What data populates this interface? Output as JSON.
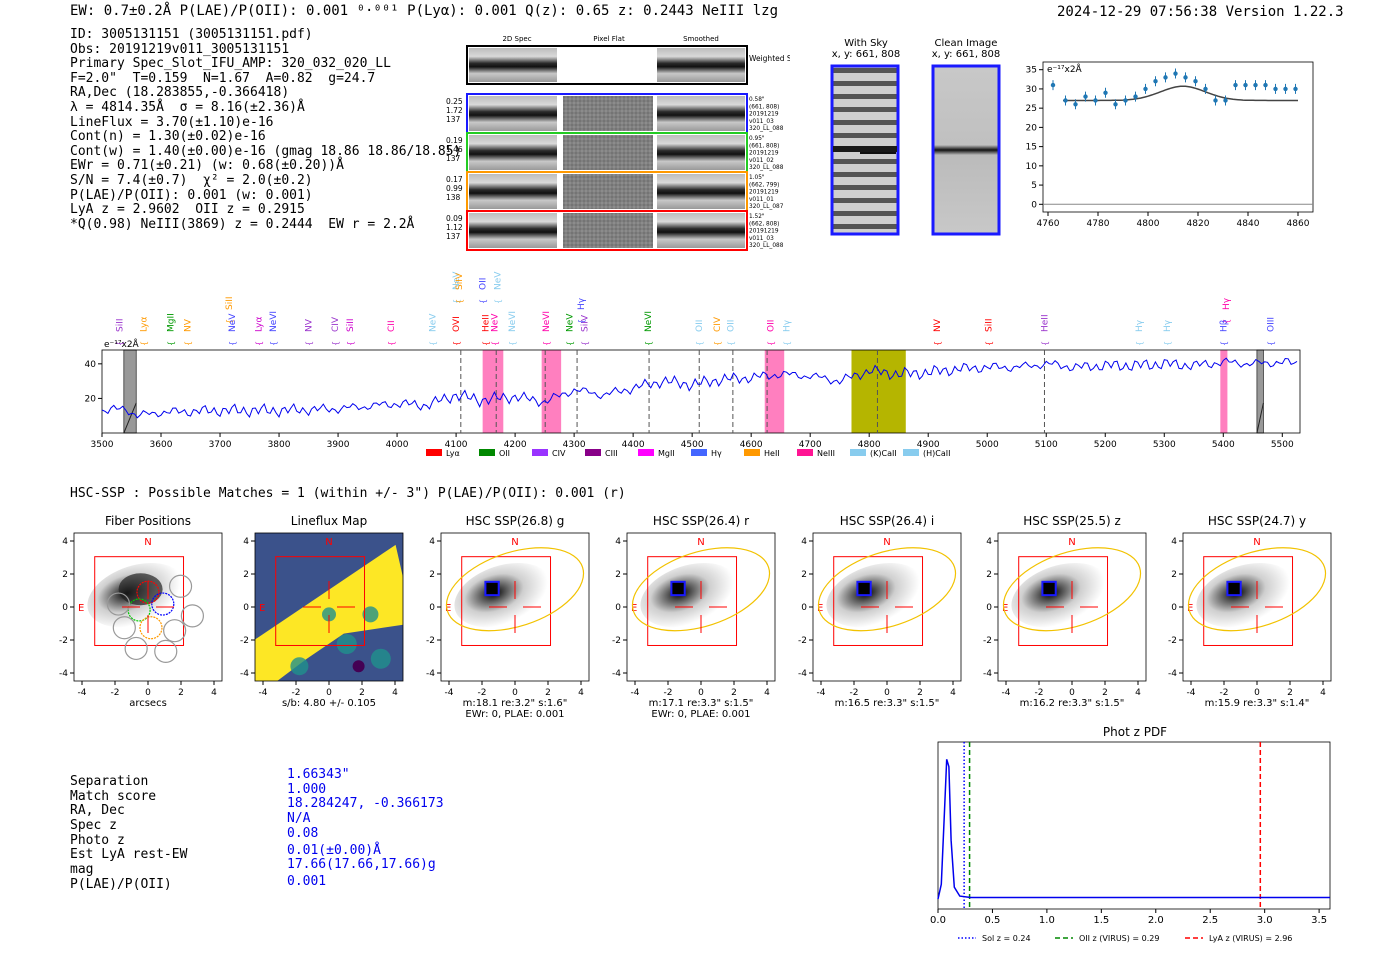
{
  "header": {
    "left": "EW: 0.7±0.2Å  P(LAE)/P(OII): 0.001 ⁰·⁰⁰¹  P(Lyα): 0.001  Q(z): 0.65  z: 0.2443  NeIII  lzg",
    "right": "2024-12-29 07:56:38  Version 1.22.3"
  },
  "info": [
    "ID: 3005131151 (3005131151.pdf)",
    "Obs: 20191219v011_3005131151",
    "Primary Spec_Slot_IFU_AMP: 320_032_020_LL",
    "F=2.0\"  T=0.159  N=1.67  A=0.82  g=24.7",
    "RA,Dec (18.283855,-0.366418)",
    "λ = 4814.35Å  σ = 8.16(±2.36)Å",
    "LineFlux = 3.70(±1.10)e-16",
    "Cont(n) = 1.30(±0.02)e-16",
    "Cont(w) = 1.40(±0.00)e-16 (gmag 18.86 18.86/18.85)",
    "EWr = 0.71(±0.21) (w: 0.68(±0.20))Å",
    "S/N = 7.4(±0.7)  χ² = 2.0(±0.2)",
    "P(LAE)/P(OII): 0.001 (w: 0.001)",
    "LyA z = 2.9602  OII z = 0.2915",
    "*Q(0.98) NeIII(3869) z = 0.2444  EW r = 2.2Å"
  ],
  "cutouts": {
    "col_titles": [
      "2D Spec",
      "Pixel Flat",
      "Smoothed"
    ],
    "weighted_label": "Weighted Sum",
    "rows": [
      {
        "left": [
          "0.25",
          "1.72",
          "137"
        ],
        "right": [
          "0.58\"",
          "(661, 808)",
          "20191219",
          "v011_03",
          "320_LL_088"
        ],
        "color": "#1a1aff"
      },
      {
        "left": [
          "0.19",
          "1.46",
          "137"
        ],
        "right": [
          "0.95\"",
          "(661, 808)",
          "20191219",
          "v011_02",
          "320_LL_088"
        ],
        "color": "#22cc22"
      },
      {
        "left": [
          "0.17",
          "0.99",
          "138"
        ],
        "right": [
          "1.05\"",
          "(662, 799)",
          "20191219",
          "v011_01",
          "320_LL_087"
        ],
        "color": "#ff9900"
      },
      {
        "left": [
          "0.09",
          "1.12",
          "137"
        ],
        "right": [
          "1.52\"",
          "(662, 808)",
          "20191219",
          "v011_03",
          "320_LL_088"
        ],
        "color": "#ff0000"
      }
    ]
  },
  "sky": {
    "title1": "With Sky",
    "title2": "Clean Image",
    "coord": "x, y: 661, 808"
  },
  "chart_data": [
    {
      "type": "line",
      "title": "zoom spectrum",
      "ylabel": "e⁻¹⁷x2Å",
      "x": [
        4762,
        4767,
        4771,
        4775,
        4779,
        4783,
        4787,
        4791,
        4795,
        4799,
        4803,
        4807,
        4811,
        4815,
        4819,
        4823,
        4827,
        4831,
        4835,
        4839,
        4843,
        4847,
        4851,
        4855,
        4859
      ],
      "y": [
        31,
        27,
        26,
        28,
        27,
        29,
        26,
        27,
        28,
        30,
        32,
        33,
        34,
        33,
        32,
        30,
        27,
        27,
        31,
        31,
        31,
        31,
        30,
        30,
        30
      ],
      "model": {
        "baseline": 27,
        "amp": 3.7,
        "center": 4814,
        "sigma": 9
      },
      "xlim": [
        4758,
        4866
      ],
      "ylim": [
        -2,
        37
      ],
      "xticks": [
        4760,
        4780,
        4800,
        4820,
        4840,
        4860
      ],
      "yticks": [
        0,
        5,
        10,
        15,
        20,
        25,
        30,
        35
      ]
    },
    {
      "type": "line",
      "title": "full spectrum",
      "ylabel": "e⁻¹⁷x2Å",
      "xlim": [
        3500,
        5530
      ],
      "ylim": [
        0,
        48
      ],
      "xticks": [
        3500,
        3600,
        3700,
        3800,
        3900,
        4000,
        4100,
        4200,
        4300,
        4400,
        4500,
        4600,
        4700,
        4800,
        4900,
        5000,
        5100,
        5200,
        5300,
        5400,
        5500
      ],
      "yticks": [
        20,
        40
      ],
      "knots": [
        [
          3500,
          13
        ],
        [
          3540,
          14
        ],
        [
          3560,
          10
        ],
        [
          3600,
          12
        ],
        [
          3700,
          13
        ],
        [
          3800,
          13
        ],
        [
          3900,
          14
        ],
        [
          4000,
          17
        ],
        [
          4050,
          16
        ],
        [
          4100,
          22
        ],
        [
          4140,
          19
        ],
        [
          4200,
          21
        ],
        [
          4250,
          18
        ],
        [
          4300,
          25
        ],
        [
          4350,
          22
        ],
        [
          4400,
          26
        ],
        [
          4450,
          30
        ],
        [
          4500,
          28
        ],
        [
          4550,
          31
        ],
        [
          4600,
          32
        ],
        [
          4650,
          34
        ],
        [
          4700,
          33
        ],
        [
          4750,
          30
        ],
        [
          4800,
          36
        ],
        [
          4850,
          34
        ],
        [
          4900,
          35
        ],
        [
          4950,
          37
        ],
        [
          5000,
          38
        ],
        [
          5050,
          38
        ],
        [
          5100,
          40
        ],
        [
          5150,
          38
        ],
        [
          5200,
          39
        ],
        [
          5250,
          39
        ],
        [
          5300,
          40
        ],
        [
          5350,
          39
        ],
        [
          5400,
          41
        ],
        [
          5450,
          40
        ],
        [
          5500,
          41
        ],
        [
          5530,
          40
        ]
      ],
      "dashed_lines": [
        4108,
        4168,
        4251,
        4305,
        4427,
        4512,
        4569,
        4627,
        4814,
        5097
      ],
      "pink_bands": [
        [
          4145,
          4180
        ],
        [
          4245,
          4278
        ],
        [
          4623,
          4656
        ],
        [
          5395,
          5407
        ]
      ],
      "olive_band": [
        4770,
        4862
      ],
      "gray_bands": [
        [
          3537,
          3558
        ],
        [
          5457,
          5468
        ]
      ],
      "lines": [
        {
          "name": "SiII",
          "x": 3530,
          "color": "#9933cc",
          "tier": 0
        },
        {
          "name": "Lyα",
          "x": 3570,
          "color": "#ff9900",
          "tier": 0
        },
        {
          "name": "MgII",
          "x": 3616,
          "color": "#009900",
          "tier": 0
        },
        {
          "name": "NV",
          "x": 3645,
          "color": "#ff9900",
          "tier": 0
        },
        {
          "name": "SiII",
          "x": 3715,
          "color": "#ff9900",
          "tier": 1
        },
        {
          "name": "NeV",
          "x": 3720,
          "color": "#4444ff",
          "tier": 0
        },
        {
          "name": "Lyα",
          "x": 3765,
          "color": "#cc00cc",
          "tier": 0
        },
        {
          "name": "NeVI",
          "x": 3790,
          "color": "#4444ff",
          "tier": 0
        },
        {
          "name": "NV",
          "x": 3850,
          "color": "#9933cc",
          "tier": 0
        },
        {
          "name": "CIV",
          "x": 3895,
          "color": "#9933cc",
          "tier": 0
        },
        {
          "name": "SiII",
          "x": 3920,
          "color": "#cc00cc",
          "tier": 0
        },
        {
          "name": "CII",
          "x": 3990,
          "color": "#ff00aa",
          "tier": 0
        },
        {
          "name": "NeV",
          "x": 4060,
          "color": "#88ccee",
          "tier": 0
        },
        {
          "name": "NeV",
          "x": 4100,
          "color": "#88ccee",
          "tier": 2
        },
        {
          "name": "SiIV",
          "x": 4105,
          "color": "#ff9900",
          "tier": 2
        },
        {
          "name": "OVI",
          "x": 4100,
          "color": "#ff0000",
          "tier": 0
        },
        {
          "name": "OII",
          "x": 4145,
          "color": "#4444ff",
          "tier": 2
        },
        {
          "name": "HeII",
          "x": 4150,
          "color": "#ff0000",
          "tier": 0
        },
        {
          "name": "NeV",
          "x": 4170,
          "color": "#88ccee",
          "tier": 2
        },
        {
          "name": "NeV",
          "x": 4165,
          "color": "#ff00aa",
          "tier": 0
        },
        {
          "name": "NeVI",
          "x": 4195,
          "color": "#88ccee",
          "tier": 0
        },
        {
          "name": "NeVI",
          "x": 4252,
          "color": "#ff00aa",
          "tier": 0
        },
        {
          "name": "NeV",
          "x": 4292,
          "color": "#009900",
          "tier": 0
        },
        {
          "name": "SiIV",
          "x": 4318,
          "color": "#9933cc",
          "tier": 0
        },
        {
          "name": "Hγ",
          "x": 4312,
          "color": "#4444ff",
          "tier": 1
        },
        {
          "name": "NeVI",
          "x": 4425,
          "color": "#009900",
          "tier": 0
        },
        {
          "name": "OII",
          "x": 4512,
          "color": "#88ccee",
          "tier": 0
        },
        {
          "name": "CIV",
          "x": 4542,
          "color": "#ff9900",
          "tier": 0
        },
        {
          "name": "OII",
          "x": 4565,
          "color": "#88ccee",
          "tier": 0
        },
        {
          "name": "OII",
          "x": 4633,
          "color": "#ff00aa",
          "tier": 0
        },
        {
          "name": "Hγ",
          "x": 4660,
          "color": "#88ccee",
          "tier": 0
        },
        {
          "name": "NV",
          "x": 4915,
          "color": "#ff0000",
          "tier": 0
        },
        {
          "name": "SiII",
          "x": 5002,
          "color": "#ff0000",
          "tier": 0
        },
        {
          "name": "HeII",
          "x": 5097,
          "color": "#9933cc",
          "tier": 0
        },
        {
          "name": "Hγ",
          "x": 5257,
          "color": "#88ccee",
          "tier": 0
        },
        {
          "name": "Hγ",
          "x": 5305,
          "color": "#88ccee",
          "tier": 0
        },
        {
          "name": "Hγ",
          "x": 5405,
          "color": "#ff00aa",
          "tier": 1
        },
        {
          "name": "Hβ",
          "x": 5400,
          "color": "#4444ff",
          "tier": 0
        },
        {
          "name": "OIII",
          "x": 5480,
          "color": "#4444ff",
          "tier": 0
        }
      ],
      "legend": [
        {
          "label": "Lyα",
          "color": "#ff0000"
        },
        {
          "label": "OII",
          "color": "#008800"
        },
        {
          "label": "CIV",
          "color": "#9933ff"
        },
        {
          "label": "CIII",
          "color": "#880088"
        },
        {
          "label": "MgII",
          "color": "#ff00ff"
        },
        {
          "label": "Hγ",
          "color": "#4466ff"
        },
        {
          "label": "HeII",
          "color": "#ff9900"
        },
        {
          "label": "NeIII",
          "color": "#ff1493"
        },
        {
          "label": "(K)CaII",
          "color": "#88ccee"
        },
        {
          "label": "(H)CaII",
          "color": "#88ccee"
        }
      ]
    },
    {
      "type": "line",
      "title": "Phot z PDF",
      "xlim": [
        0,
        3.6
      ],
      "ylim": [
        0,
        1
      ],
      "xticks": [
        0.0,
        0.5,
        1.0,
        1.5,
        2.0,
        2.5,
        3.0,
        3.5
      ],
      "pdf_x": [
        0,
        0.03,
        0.06,
        0.08,
        0.1,
        0.12,
        0.15,
        0.2,
        0.3,
        3.6
      ],
      "pdf_y": [
        0.0,
        0.1,
        0.6,
        0.95,
        0.9,
        0.4,
        0.08,
        0.02,
        0.01,
        0.01
      ],
      "vlines": [
        {
          "label": "Sol z = 0.24",
          "x": 0.24,
          "color": "#0000ff",
          "dash": "1.5,2"
        },
        {
          "label": "OII z (VIRUS) = 0.29",
          "x": 0.29,
          "color": "#008800",
          "dash": "5,3"
        },
        {
          "label": "LyA z (VIRUS) = 2.96",
          "x": 2.96,
          "color": "#ff0000",
          "dash": "5,3"
        }
      ]
    }
  ],
  "hsc_line": "HSC-SSP : Possible Matches = 1 (within +/- 3\")  P(LAE)/P(OII): 0.001 (r)",
  "panels": [
    {
      "title": "Fiber Positions",
      "caption1": "arcsecs",
      "caption2": ""
    },
    {
      "title": "Lineflux Map",
      "caption1": "s/b: 4.80 +/- 0.105",
      "caption2": ""
    },
    {
      "title": "HSC SSP(26.8) g",
      "caption1": "m:18.1  re:3.2\"  s:1.6\"",
      "caption2": "EWr: 0, PLAE: 0.001"
    },
    {
      "title": "HSC SSP(26.4) r",
      "caption1": "m:17.1  re:3.3\"  s:1.5\"",
      "caption2": "EWr: 0, PLAE: 0.001"
    },
    {
      "title": "HSC SSP(26.4) i",
      "caption1": "m:16.5  re:3.3\"  s:1.5\"",
      "caption2": ""
    },
    {
      "title": "HSC SSP(25.5) z",
      "caption1": "m:16.2  re:3.3\"  s:1.5\"",
      "caption2": ""
    },
    {
      "title": "HSC SSP(24.7) y",
      "caption1": "m:15.9  re:3.3\"  s:1.4\"",
      "caption2": ""
    }
  ],
  "panel_axis": {
    "ticks": [
      "-4",
      "-2",
      "0",
      "2",
      "4"
    ],
    "n": "N",
    "e": "E"
  },
  "match": {
    "labels": [
      "Separation",
      "Match score",
      "RA, Dec",
      "Spec z",
      "Photo z",
      "Est LyA rest-EW",
      "mag",
      "P(LAE)/P(OII)"
    ],
    "values": [
      "1.66343\"",
      "1.000",
      "18.284247, -0.366173",
      "N/A",
      "0.08",
      "0.01(±0.00)Å",
      "17.66(17.66,17.66)g",
      "0.001"
    ]
  }
}
